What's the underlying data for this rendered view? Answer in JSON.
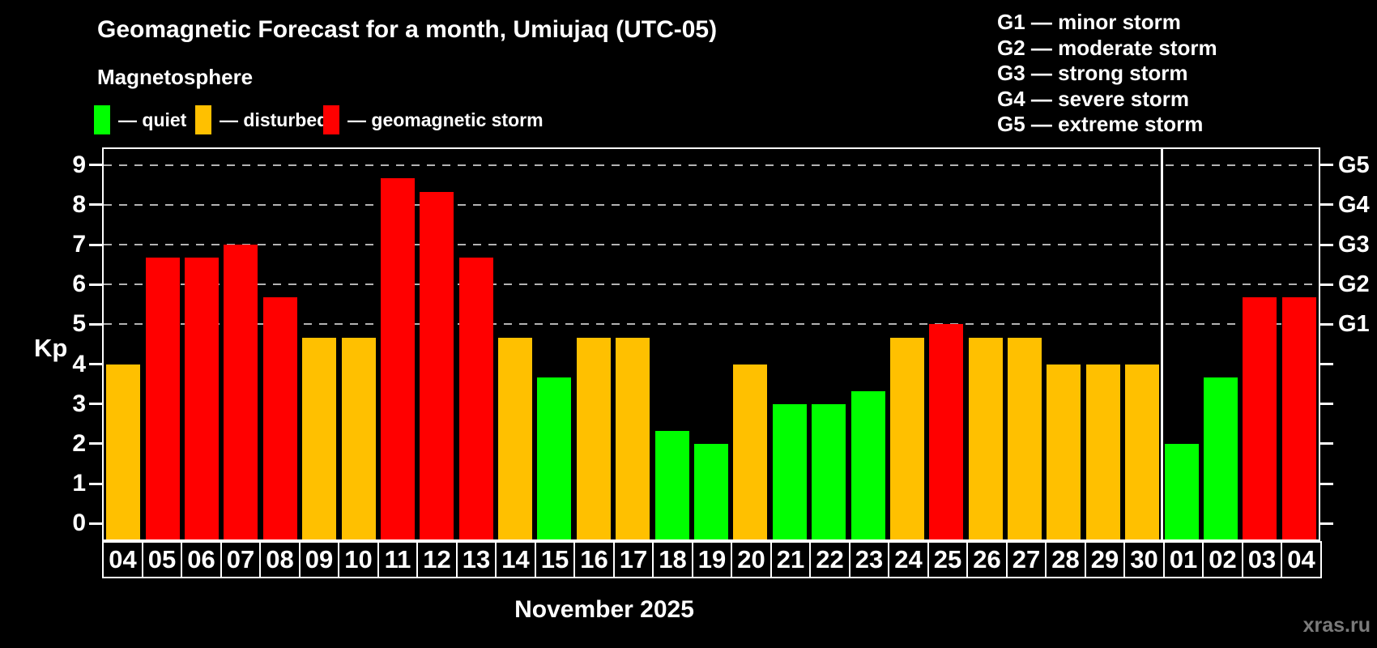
{
  "header": {
    "title": "Geomagnetic Forecast for a month, Umiujaq (UTC-05)",
    "subtitle": "Magnetosphere"
  },
  "legend": {
    "items": [
      {
        "status": "quiet",
        "label": "— quiet"
      },
      {
        "status": "disturbed",
        "label": "— disturbed"
      },
      {
        "status": "storm",
        "label": "— geomagnetic storm"
      }
    ]
  },
  "g_legend": [
    "G1 — minor storm",
    "G2 — moderate storm",
    "G3 — strong storm",
    "G4 — severe storm",
    "G5 — extreme storm"
  ],
  "colors": {
    "quiet": "#00ff00",
    "disturbed": "#ffc000",
    "storm": "#ff0000",
    "grid": "#b3b3b3",
    "axis": "#ffffff",
    "background": "#000000",
    "watermark": "#7a7a7a"
  },
  "watermark": "xras.ru",
  "chart_data": {
    "type": "bar",
    "title": "Geomagnetic Forecast for a month, Umiujaq (UTC-05)",
    "ylabel": "Kp",
    "xlabel": "November 2025",
    "ylim": [
      0,
      9
    ],
    "y_ticks": [
      0,
      1,
      2,
      3,
      4,
      5,
      6,
      7,
      8,
      9
    ],
    "gridlines": [
      5,
      6,
      7,
      8,
      9
    ],
    "grid_style": "dashed",
    "legend_position": "top",
    "right_axis": [
      {
        "kp": 5,
        "label": "G1"
      },
      {
        "kp": 6,
        "label": "G2"
      },
      {
        "kp": 7,
        "label": "G3"
      },
      {
        "kp": 8,
        "label": "G4"
      },
      {
        "kp": 9,
        "label": "G5"
      }
    ],
    "month_separator_after_index": 26,
    "bars": [
      {
        "day": "04",
        "kp": 4.0,
        "status": "disturbed"
      },
      {
        "day": "05",
        "kp": 6.67,
        "status": "storm"
      },
      {
        "day": "06",
        "kp": 6.67,
        "status": "storm"
      },
      {
        "day": "07",
        "kp": 7.0,
        "status": "storm"
      },
      {
        "day": "08",
        "kp": 5.67,
        "status": "storm"
      },
      {
        "day": "09",
        "kp": 4.67,
        "status": "disturbed"
      },
      {
        "day": "10",
        "kp": 4.67,
        "status": "disturbed"
      },
      {
        "day": "11",
        "kp": 8.67,
        "status": "storm"
      },
      {
        "day": "12",
        "kp": 8.33,
        "status": "storm"
      },
      {
        "day": "13",
        "kp": 6.67,
        "status": "storm"
      },
      {
        "day": "14",
        "kp": 4.67,
        "status": "disturbed"
      },
      {
        "day": "15",
        "kp": 3.67,
        "status": "quiet"
      },
      {
        "day": "16",
        "kp": 4.67,
        "status": "disturbed"
      },
      {
        "day": "17",
        "kp": 4.67,
        "status": "disturbed"
      },
      {
        "day": "18",
        "kp": 2.33,
        "status": "quiet"
      },
      {
        "day": "19",
        "kp": 2.0,
        "status": "quiet"
      },
      {
        "day": "20",
        "kp": 4.0,
        "status": "disturbed"
      },
      {
        "day": "21",
        "kp": 3.0,
        "status": "quiet"
      },
      {
        "day": "22",
        "kp": 3.0,
        "status": "quiet"
      },
      {
        "day": "23",
        "kp": 3.33,
        "status": "quiet"
      },
      {
        "day": "24",
        "kp": 4.67,
        "status": "disturbed"
      },
      {
        "day": "25",
        "kp": 5.0,
        "status": "storm"
      },
      {
        "day": "26",
        "kp": 4.67,
        "status": "disturbed"
      },
      {
        "day": "27",
        "kp": 4.67,
        "status": "disturbed"
      },
      {
        "day": "28",
        "kp": 4.0,
        "status": "disturbed"
      },
      {
        "day": "29",
        "kp": 4.0,
        "status": "disturbed"
      },
      {
        "day": "30",
        "kp": 4.0,
        "status": "disturbed"
      },
      {
        "day": "01",
        "kp": 2.0,
        "status": "quiet"
      },
      {
        "day": "02",
        "kp": 3.67,
        "status": "quiet"
      },
      {
        "day": "03",
        "kp": 5.67,
        "status": "storm"
      },
      {
        "day": "04",
        "kp": 5.67,
        "status": "storm"
      }
    ]
  }
}
